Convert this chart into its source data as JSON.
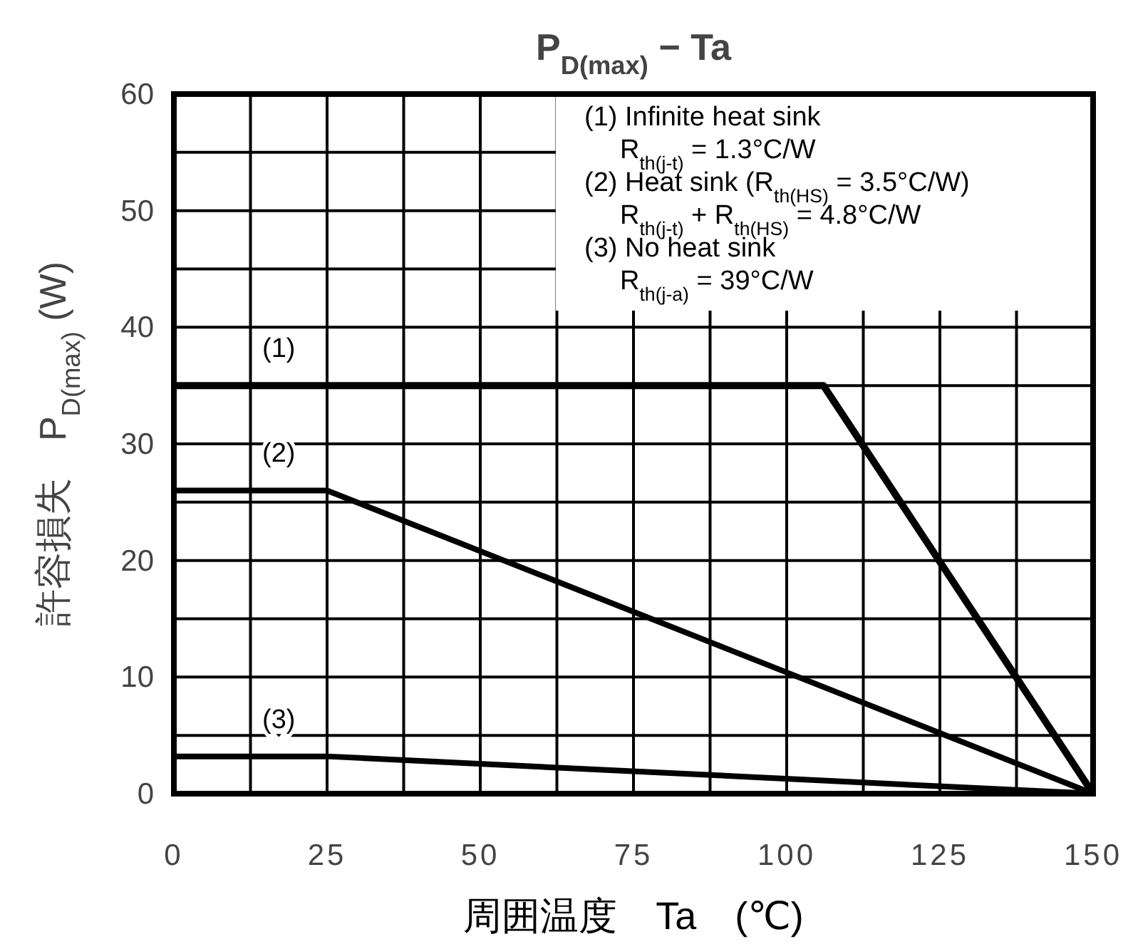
{
  "chart_data": {
    "type": "line",
    "title": "P$_{D(max)}$ − Ta",
    "xlabel": "周囲温度　Ta　(℃)",
    "ylabel": "許容損失　P$_{D(max)}$ (W)",
    "annotations": [
      "(1) Infinite heat sink",
      "R$_{th(j-t)}$ = 1.3°C/W",
      "(2) Heat sink (R$_{th(HS)}$ = 3.5°C/W)",
      "R$_{th(j-t)}$ + R$_{th(HS)}$ = 4.8°C/W",
      "(3) No heat sink",
      "R$_{th(j-a)}$ = 39°C/W"
    ],
    "series": [
      {
        "name": "(1)",
        "color": "#000000",
        "x": [
          0,
          106,
          150
        ],
        "values": [
          35,
          35,
          0
        ]
      },
      {
        "name": "(2)",
        "color": "#000000",
        "x": [
          0,
          25,
          150
        ],
        "values": [
          26,
          26,
          0
        ]
      },
      {
        "name": "(3)",
        "color": "#000000",
        "x": [
          0,
          25,
          150
        ],
        "values": [
          3.2,
          3.2,
          0
        ]
      }
    ],
    "xlim": [
      0,
      150
    ],
    "ylim": [
      0,
      60
    ],
    "xticks": [
      0,
      {
        "value": 12.5,
        "label": null
      },
      25,
      {
        "value": 37.5,
        "label": null
      },
      50,
      {
        "value": 62.5,
        "label": null
      },
      75,
      {
        "value": 87.5,
        "label": null
      },
      100,
      {
        "value": 112.5,
        "label": null
      },
      125,
      {
        "value": 137.5,
        "label": null
      },
      150
    ],
    "yticks": [
      0,
      {
        "value": 5,
        "label": null
      },
      10,
      {
        "value": 15,
        "label": null
      },
      20,
      {
        "value": 25,
        "label": null
      },
      30,
      {
        "value": 35,
        "label": null
      },
      40,
      {
        "value": 45,
        "label": null
      },
      50,
      {
        "value": 55,
        "label": null
      },
      60
    ],
    "grid": true,
    "line_style": "solid"
  }
}
